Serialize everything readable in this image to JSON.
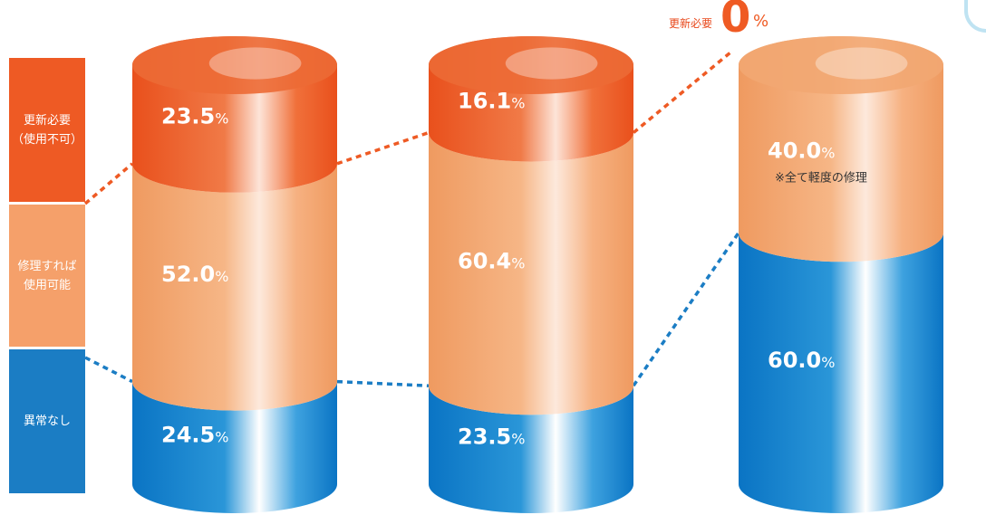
{
  "legend": {
    "renew": {
      "line1": "更新必要",
      "line2": "（使用不可）",
      "color": "#ee5a24"
    },
    "repair": {
      "line1": "修理すれば",
      "line2": "使用可能",
      "color": "#f5a06a"
    },
    "ok": {
      "line1": "異常なし",
      "color": "#1b7dc4"
    }
  },
  "callout": {
    "label": "更新必要",
    "value": "0",
    "unit": "%"
  },
  "chart_data": {
    "type": "bar",
    "stacked": true,
    "unit": "%",
    "categories": [
      "",
      "",
      ""
    ],
    "series": [
      {
        "name": "異常なし",
        "values": [
          24.5,
          23.5,
          60.0
        ],
        "labels": [
          "24.5",
          "23.5",
          "60.0"
        ],
        "color": "#1b7dc4"
      },
      {
        "name": "修理すれば使用可能",
        "values": [
          52.0,
          60.4,
          40.0
        ],
        "labels": [
          "52.0",
          "60.4",
          "40.0"
        ],
        "color": "#f5a06a"
      },
      {
        "name": "更新必要（使用不可）",
        "values": [
          23.5,
          16.1,
          0
        ],
        "labels": [
          "23.5",
          "16.1",
          "0"
        ],
        "color": "#ee5a24"
      }
    ],
    "annotations": [
      {
        "bar": 2,
        "text": "※全て軽度の修理"
      }
    ],
    "ylim": [
      0,
      100
    ]
  }
}
